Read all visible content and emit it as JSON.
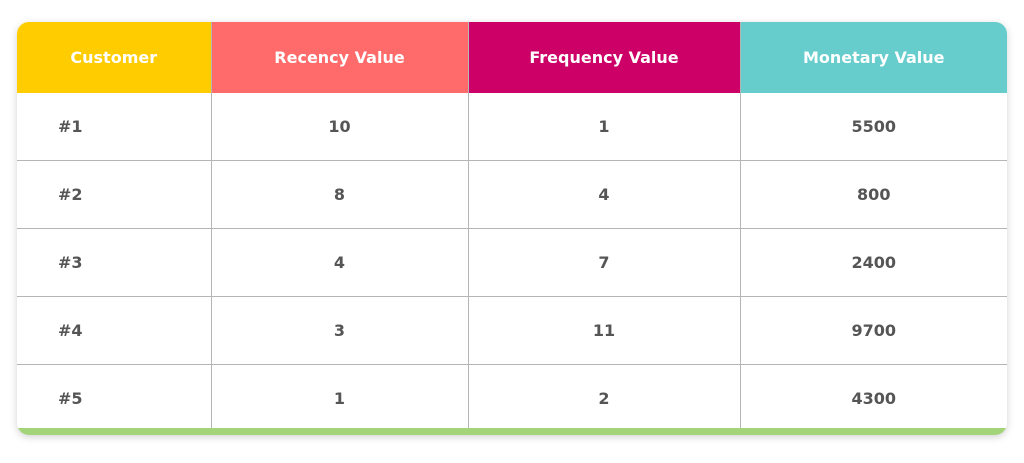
{
  "table": {
    "header": [
      "Customer",
      "Recency Value",
      "Frequency Value",
      "Monetary Value"
    ],
    "rows": [
      [
        "#1",
        10,
        1,
        5500
      ],
      [
        "#2",
        8,
        4,
        800
      ],
      [
        "#3",
        4,
        7,
        2400
      ],
      [
        "#4",
        3,
        11,
        9700
      ],
      [
        "#5",
        1,
        2,
        4300
      ]
    ]
  }
}
